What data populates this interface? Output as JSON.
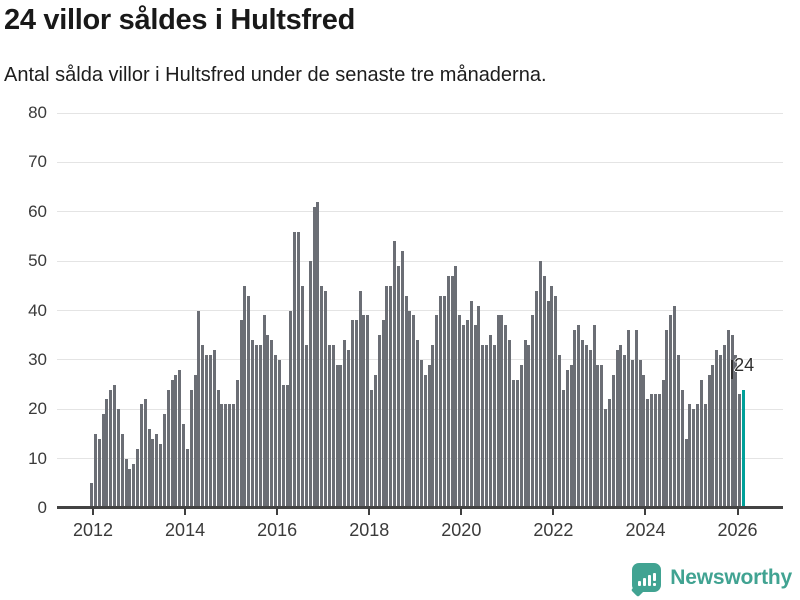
{
  "header": {
    "title": "24 villor såldes i Hultsfred",
    "subtitle": "Antal sålda villor i Hultsfred under de senaste tre månaderna."
  },
  "chart_data": {
    "type": "bar",
    "title": "24 villor såldes i Hultsfred",
    "subtitle": "Antal sålda villor i Hultsfred under de senaste tre månaderna.",
    "xlabel": "",
    "ylabel": "",
    "ylim": [
      0,
      80
    ],
    "yticks": [
      0,
      10,
      20,
      30,
      40,
      50,
      60,
      70,
      80
    ],
    "xticks": [
      "2012",
      "2014",
      "2016",
      "2018",
      "2020",
      "2022",
      "2024",
      "2026"
    ],
    "grid": "horizontal",
    "legend": "none",
    "x_monthly_start": "2011-12",
    "x_monthly_end": "2026-02",
    "bar_color": "#6B6E75",
    "highlight_color": "#00A099",
    "highlight_index_from_end": 1,
    "annotation": {
      "text": "24",
      "applies_to": "last-bar"
    },
    "values": [
      5,
      15,
      14,
      19,
      22,
      24,
      25,
      20,
      15,
      10,
      8,
      9,
      12,
      21,
      22,
      16,
      14,
      15,
      13,
      19,
      24,
      26,
      27,
      28,
      17,
      12,
      24,
      27,
      40,
      33,
      31,
      31,
      32,
      24,
      21,
      21,
      21,
      21,
      26,
      38,
      45,
      43,
      34,
      33,
      33,
      39,
      35,
      34,
      31,
      30,
      25,
      25,
      40,
      56,
      56,
      45,
      33,
      50,
      61,
      62,
      45,
      44,
      33,
      33,
      29,
      29,
      34,
      32,
      38,
      38,
      44,
      39,
      39,
      24,
      27,
      35,
      38,
      45,
      45,
      54,
      49,
      52,
      43,
      40,
      39,
      34,
      30,
      27,
      29,
      33,
      39,
      43,
      43,
      47,
      47,
      49,
      39,
      37,
      38,
      42,
      37,
      41,
      33,
      33,
      35,
      33,
      39,
      39,
      37,
      34,
      26,
      26,
      29,
      34,
      33,
      39,
      44,
      50,
      47,
      42,
      45,
      43,
      31,
      24,
      28,
      29,
      36,
      37,
      34,
      33,
      32,
      37,
      29,
      29,
      20,
      22,
      27,
      32,
      33,
      31,
      36,
      30,
      36,
      30,
      27,
      22,
      23,
      23,
      23,
      26,
      36,
      39,
      41,
      31,
      24,
      14,
      21,
      20,
      21,
      26,
      21,
      27,
      29,
      32,
      31,
      33,
      36,
      35,
      31,
      23,
      24
    ]
  },
  "footer": {
    "brand": "Newsworthy",
    "brand_color": "#41A392",
    "logo_icon": "bar-chart-speech-bubble"
  }
}
